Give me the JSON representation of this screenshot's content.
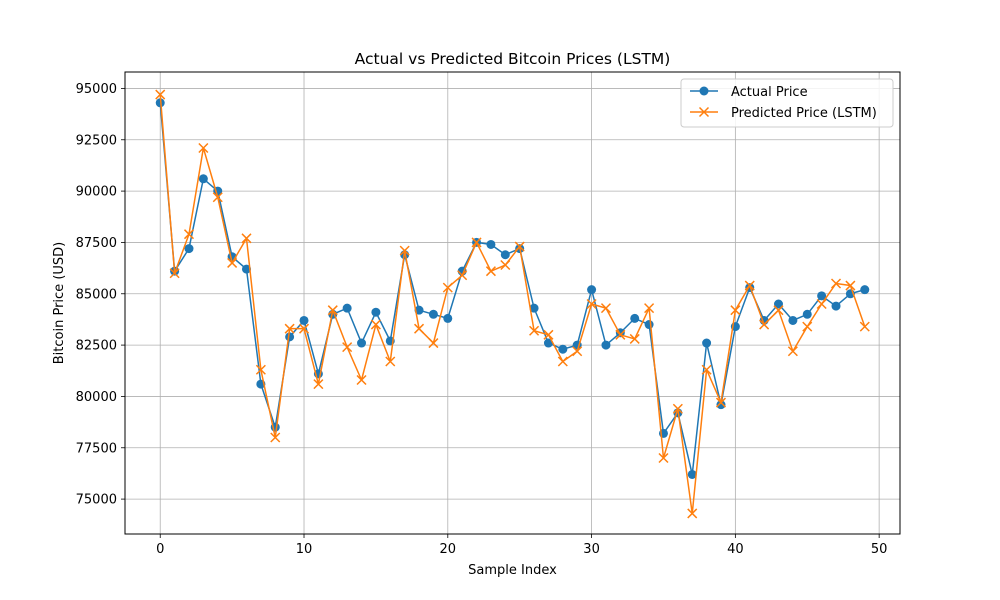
{
  "chart_data": {
    "type": "line",
    "title": "Actual vs Predicted Bitcoin Prices (LSTM)",
    "xlabel": "Sample Index",
    "ylabel": "Bitcoin Price (USD)",
    "xlim": [
      -2.45,
      51.45
    ],
    "ylim": [
      73300,
      95800
    ],
    "x_ticks": [
      0,
      10,
      20,
      30,
      40,
      50
    ],
    "y_ticks": [
      75000,
      77500,
      80000,
      82500,
      85000,
      87500,
      90000,
      92500,
      95000
    ],
    "grid": true,
    "legend_position": "top-right",
    "x": [
      0,
      1,
      2,
      3,
      4,
      5,
      6,
      7,
      8,
      9,
      10,
      11,
      12,
      13,
      14,
      15,
      16,
      17,
      18,
      19,
      20,
      21,
      22,
      23,
      24,
      25,
      26,
      27,
      28,
      29,
      30,
      31,
      32,
      33,
      34,
      35,
      36,
      37,
      38,
      39,
      40,
      41,
      42,
      43,
      44,
      45,
      46,
      47,
      48,
      49
    ],
    "series": [
      {
        "name": "Actual Price",
        "color": "#1f77b4",
        "marker": "circle",
        "values": [
          94300,
          86100,
          87200,
          90600,
          90000,
          86800,
          86200,
          80600,
          78500,
          82900,
          83700,
          81100,
          84000,
          84300,
          82600,
          84100,
          82700,
          86900,
          84200,
          84000,
          83800,
          86100,
          87500,
          87400,
          86900,
          87200,
          84300,
          82600,
          82300,
          82500,
          85200,
          82500,
          83100,
          83800,
          83500,
          78200,
          79200,
          76200,
          82600,
          79600,
          83400,
          85300,
          83700,
          84500,
          83700,
          84000,
          84900,
          84400,
          85000,
          85200
        ]
      },
      {
        "name": "Predicted Price (LSTM)",
        "color": "#ff7f0e",
        "marker": "x",
        "values": [
          94700,
          86000,
          87900,
          92100,
          89700,
          86500,
          87700,
          81300,
          78000,
          83300,
          83300,
          80600,
          84200,
          82400,
          80800,
          83500,
          81700,
          87100,
          83300,
          82600,
          85300,
          85900,
          87500,
          86100,
          86400,
          87300,
          83200,
          83000,
          81700,
          82200,
          84500,
          84300,
          83000,
          82800,
          84300,
          77000,
          79400,
          74300,
          81300,
          79700,
          84200,
          85400,
          83500,
          84200,
          82200,
          83400,
          84500,
          85500,
          85400,
          83400
        ]
      }
    ]
  }
}
